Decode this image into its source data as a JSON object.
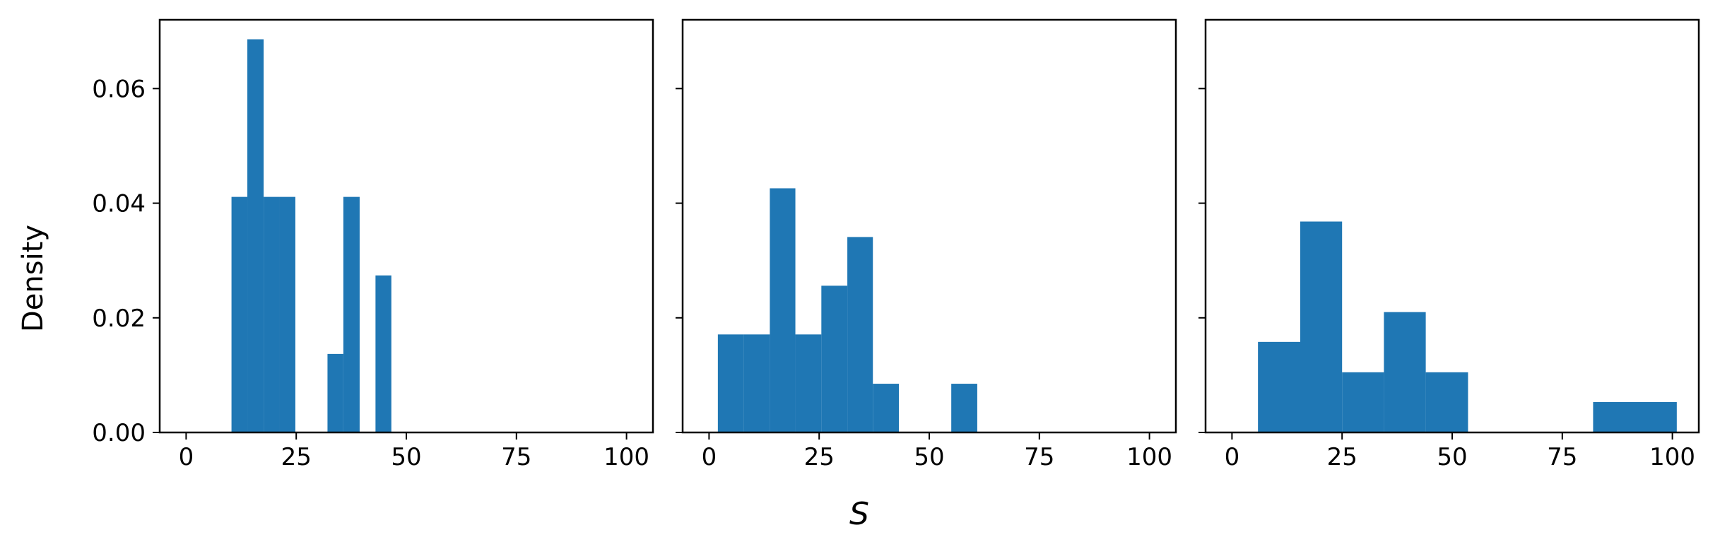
{
  "figure": {
    "ylabel": "Density",
    "xlabel": "S"
  },
  "chart_data": [
    {
      "type": "bar",
      "xlim": [
        -6,
        106
      ],
      "ylim": [
        0,
        0.072
      ],
      "xticks": [
        0,
        25,
        50,
        75,
        100
      ],
      "xtick_labels": [
        "0",
        "25",
        "50",
        "75",
        "100"
      ],
      "yticks": [
        0,
        0.02,
        0.04,
        0.06
      ],
      "ytick_labels": [
        "0.00",
        "0.02",
        "0.04",
        "0.06"
      ],
      "color": "#1f77b4",
      "bins": [
        {
          "x0": 10.3,
          "x1": 13.9,
          "value": 0.0411
        },
        {
          "x0": 13.9,
          "x1": 17.6,
          "value": 0.0686
        },
        {
          "x0": 17.6,
          "x1": 21.2,
          "value": 0.0411
        },
        {
          "x0": 21.2,
          "x1": 24.8,
          "value": 0.0411
        },
        {
          "x0": 32.1,
          "x1": 35.7,
          "value": 0.0137
        },
        {
          "x0": 35.7,
          "x1": 39.4,
          "value": 0.0411
        },
        {
          "x0": 43.0,
          "x1": 46.6,
          "value": 0.0274
        }
      ]
    },
    {
      "type": "bar",
      "xlim": [
        -6,
        106
      ],
      "ylim": [
        0,
        0.072
      ],
      "xticks": [
        0,
        25,
        50,
        75,
        100
      ],
      "xtick_labels": [
        "0",
        "25",
        "50",
        "75",
        "100"
      ],
      "yticks": [
        0,
        0.02,
        0.04,
        0.06
      ],
      "ytick_labels": [
        "",
        "",
        "",
        ""
      ],
      "color": "#1f77b4",
      "bins": [
        {
          "x0": 2.0,
          "x1": 7.9,
          "value": 0.0171
        },
        {
          "x0": 7.9,
          "x1": 13.8,
          "value": 0.0171
        },
        {
          "x0": 13.8,
          "x1": 19.6,
          "value": 0.0426
        },
        {
          "x0": 19.6,
          "x1": 25.5,
          "value": 0.0171
        },
        {
          "x0": 25.5,
          "x1": 31.4,
          "value": 0.0256
        },
        {
          "x0": 31.4,
          "x1": 37.2,
          "value": 0.0341
        },
        {
          "x0": 37.2,
          "x1": 43.1,
          "value": 0.0085
        },
        {
          "x0": 55.0,
          "x1": 60.9,
          "value": 0.0085
        }
      ]
    },
    {
      "type": "bar",
      "xlim": [
        -6,
        106
      ],
      "ylim": [
        0,
        0.072
      ],
      "xticks": [
        0,
        25,
        50,
        75,
        100
      ],
      "xtick_labels": [
        "0",
        "25",
        "50",
        "75",
        "100"
      ],
      "yticks": [
        0,
        0.02,
        0.04,
        0.06
      ],
      "ytick_labels": [
        "",
        "",
        "",
        ""
      ],
      "color": "#1f77b4",
      "bins": [
        {
          "x0": 5.9,
          "x1": 15.5,
          "value": 0.0158
        },
        {
          "x0": 15.5,
          "x1": 25.0,
          "value": 0.0368
        },
        {
          "x0": 25.0,
          "x1": 34.5,
          "value": 0.0105
        },
        {
          "x0": 34.5,
          "x1": 44.0,
          "value": 0.021
        },
        {
          "x0": 44.0,
          "x1": 53.6,
          "value": 0.0105
        },
        {
          "x0": 82.0,
          "x1": 101.0,
          "value": 0.0053
        }
      ]
    }
  ]
}
